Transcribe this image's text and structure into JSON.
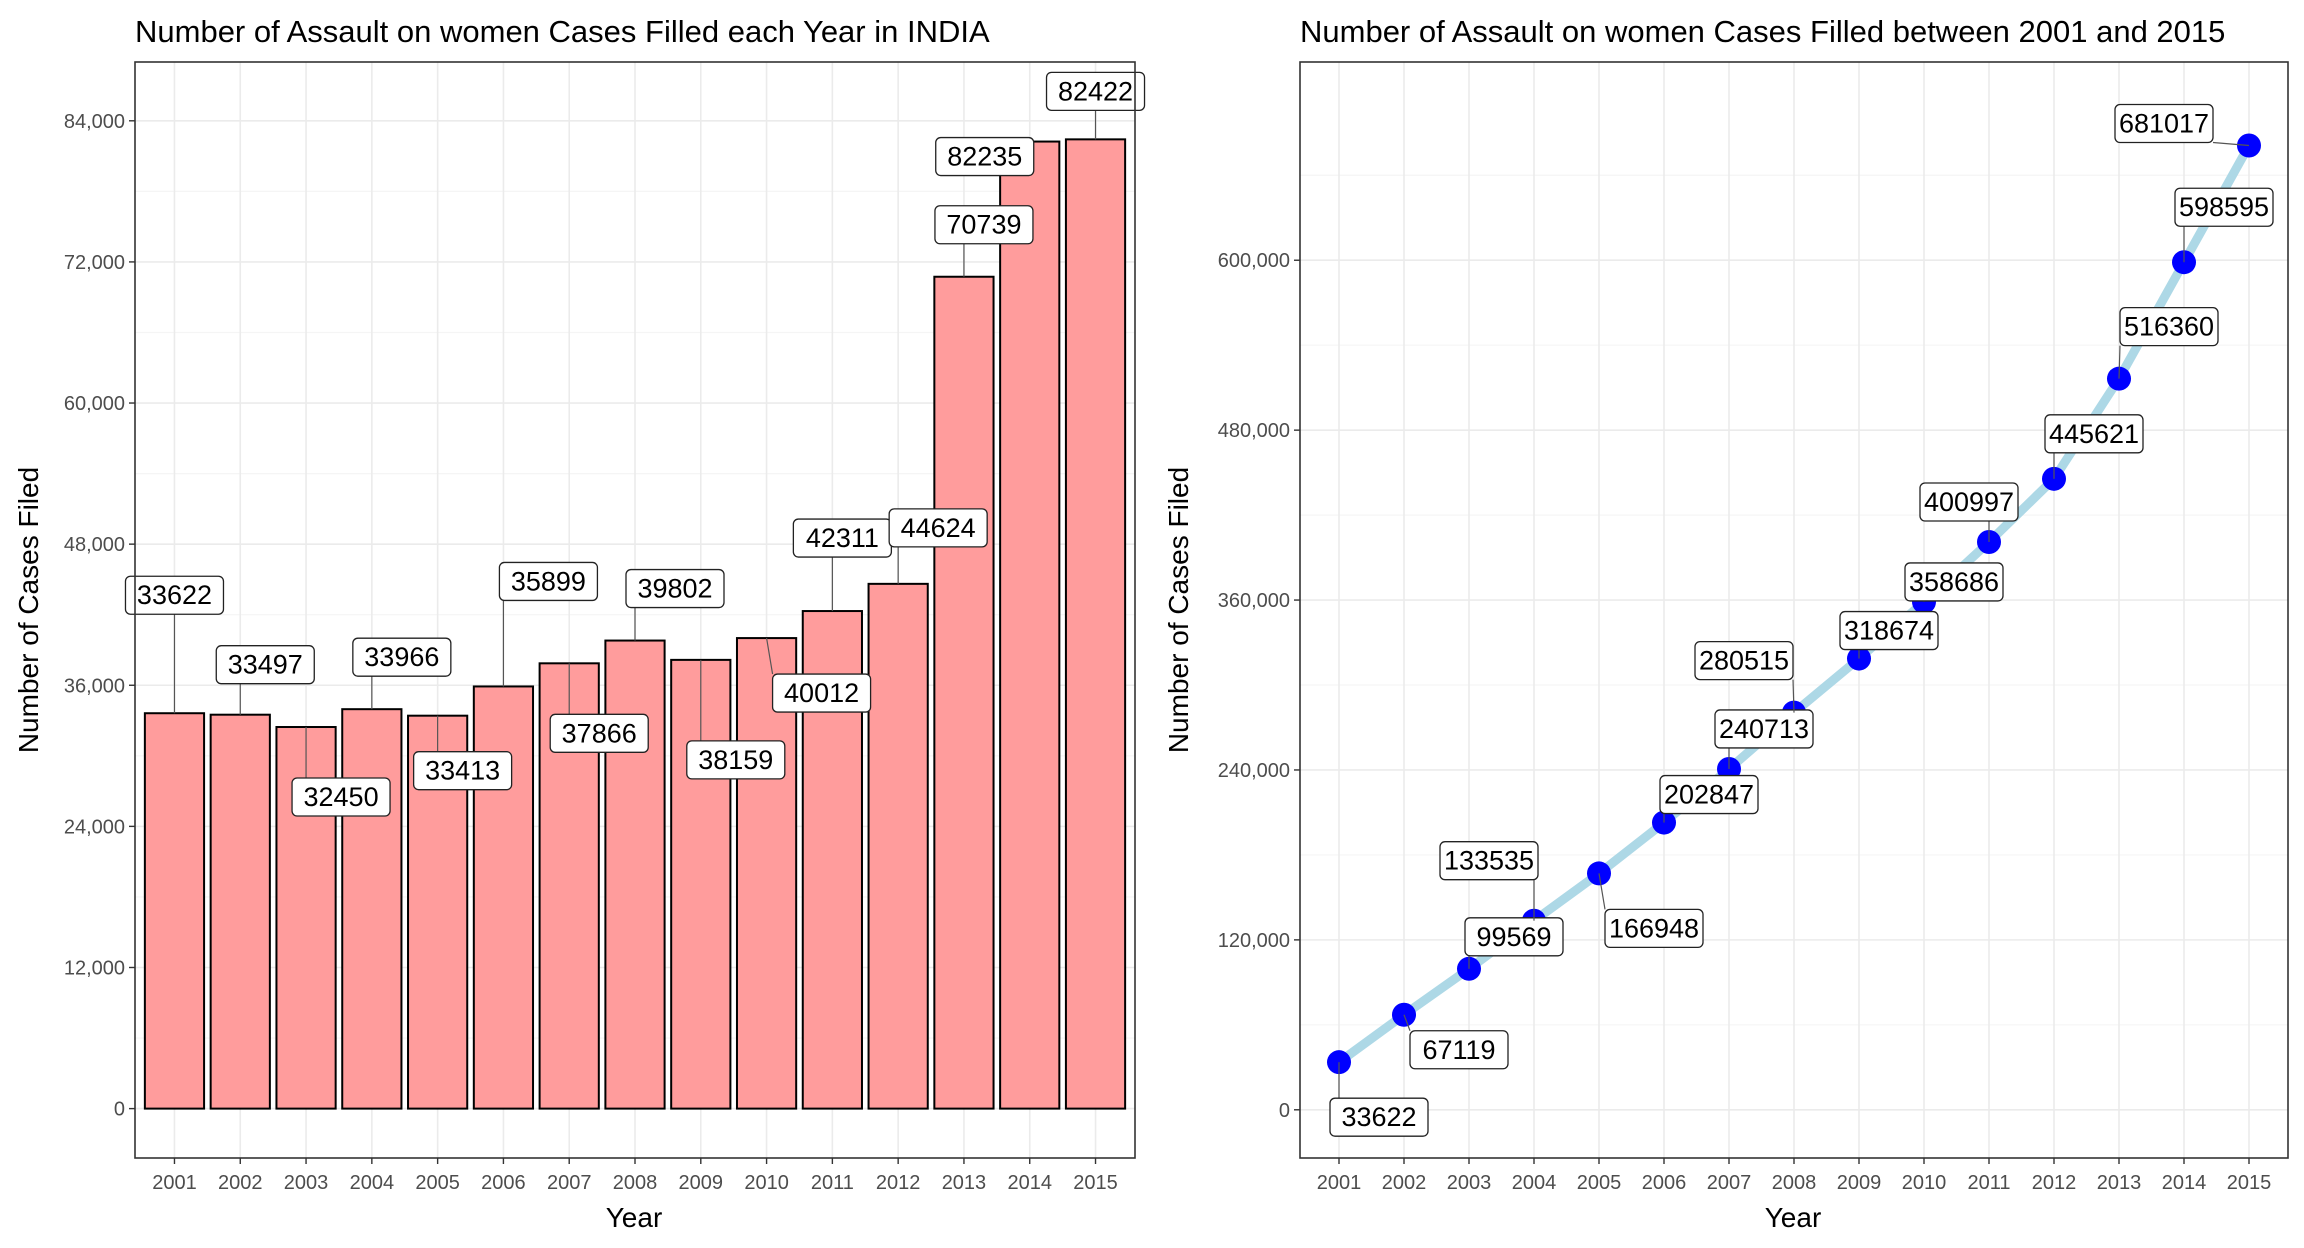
{
  "colors": {
    "bar_fill": "#ff9c9c",
    "bar_stroke": "#000000",
    "line": "#add8e6",
    "point": "#0000ff",
    "grid_major": "#ebebeb",
    "grid_minor": "#f5f5f5",
    "panel_border": "#333333"
  },
  "chart_data": [
    {
      "type": "bar",
      "title": "Number of Assault on women Cases Filled each Year in INDIA",
      "xlabel": "Year",
      "ylabel": "Number of Cases Filed",
      "categories": [
        "2001",
        "2002",
        "2003",
        "2004",
        "2005",
        "2006",
        "2007",
        "2008",
        "2009",
        "2010",
        "2011",
        "2012",
        "2013",
        "2014",
        "2015"
      ],
      "values": [
        33622,
        33497,
        32450,
        33966,
        33413,
        35899,
        37866,
        39802,
        38159,
        40012,
        42311,
        44624,
        70739,
        82235,
        82422
      ],
      "yticks": [
        0,
        12000,
        24000,
        36000,
        48000,
        60000,
        72000,
        84000
      ],
      "ytick_labels": [
        "0",
        "12,000",
        "24,000",
        "36,000",
        "48,000",
        "60,000",
        "72,000",
        "84,000"
      ],
      "ylim": [
        -4200,
        89000
      ],
      "grid": true,
      "legend": "none"
    },
    {
      "type": "line",
      "title": "Number of Assault on women Cases Filled between 2001 and 2015",
      "xlabel": "Year",
      "ylabel": "Number of Cases Filed",
      "categories": [
        "2001",
        "2002",
        "2003",
        "2004",
        "2005",
        "2006",
        "2007",
        "2008",
        "2009",
        "2010",
        "2011",
        "2012",
        "2013",
        "2014",
        "2015"
      ],
      "values": [
        33622,
        67119,
        99569,
        133535,
        166948,
        202847,
        240713,
        280515,
        318674,
        358686,
        400997,
        445621,
        516360,
        598595,
        681017
      ],
      "yticks": [
        0,
        120000,
        240000,
        360000,
        480000,
        600000
      ],
      "ytick_labels": [
        "0",
        "120,000",
        "240,000",
        "360,000",
        "480,000",
        "600,000"
      ],
      "ylim": [
        -34050,
        740000
      ],
      "grid": true,
      "legend": "none"
    }
  ]
}
